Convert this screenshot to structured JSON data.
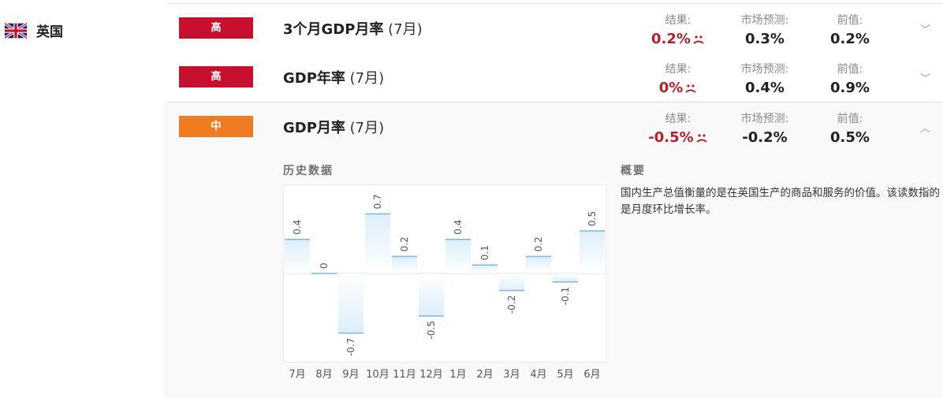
{
  "country": {
    "name": "英国",
    "flag_icon": "uk-flag-icon"
  },
  "labels": {
    "actual": "结果:",
    "forecast": "市场预测:",
    "previous": "前值:"
  },
  "events": [
    {
      "importance": "高",
      "importance_color": "#c8102e",
      "title": "3个月GDP月率",
      "period": "(7月)",
      "actual": "0.2%",
      "forecast": "0.3%",
      "previous": "0.2%",
      "expanded": false
    },
    {
      "importance": "高",
      "importance_color": "#c8102e",
      "title": "GDP年率",
      "period": "(7月)",
      "actual": "0%",
      "forecast": "0.4%",
      "previous": "0.9%",
      "expanded": false
    },
    {
      "importance": "中",
      "importance_color": "#f07c22",
      "title": "GDP月率",
      "period": "(7月)",
      "actual": "-0.5%",
      "forecast": "-0.2%",
      "previous": "0.5%",
      "expanded": true
    }
  ],
  "detail": {
    "history_title": "历史数据",
    "summary_title": "概要",
    "summary_text": "国内生产总值衡量的是在英国生产的商品和服务的价值。该读数指的是月度环比增长率。"
  },
  "chart_data": {
    "type": "bar",
    "categories": [
      "7月",
      "8月",
      "9月",
      "10月",
      "11月",
      "12月",
      "1月",
      "2月",
      "3月",
      "4月",
      "5月",
      "6月"
    ],
    "values": [
      0.4,
      0,
      -0.7,
      0.7,
      0.2,
      -0.5,
      0.4,
      0.1,
      -0.2,
      0.2,
      -0.1,
      0.5
    ],
    "data_labels": [
      "0.4",
      "0",
      "-0.7",
      "0.7",
      "0.2",
      "-0.5",
      "0.4",
      "0.1",
      "-0.2",
      "0.2",
      "-0.1",
      "0.5"
    ],
    "title": "历史数据",
    "bar_line_color": "#7fb6e0",
    "bar_fill_color": "#ddeefa",
    "ylim": [
      -1,
      1
    ]
  },
  "colors": {
    "high": "#c8102e",
    "medium": "#f07c22",
    "negative_value": "#b3222b"
  }
}
